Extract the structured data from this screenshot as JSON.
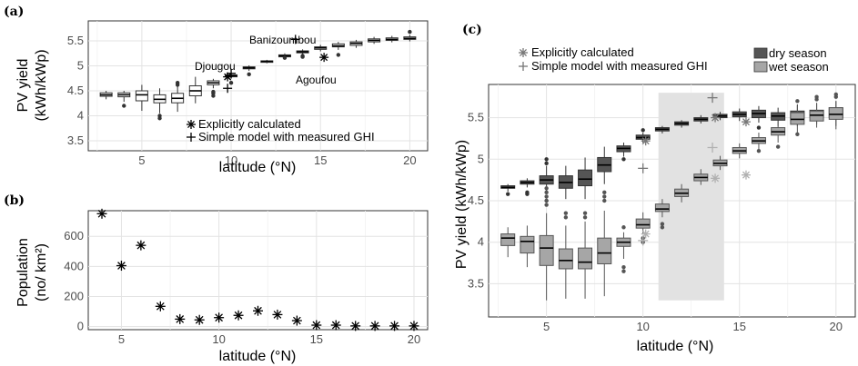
{
  "chart_data": [
    {
      "panel": "(a)",
      "type": "box",
      "xlabel": "latitude (°N)",
      "ylabel_lines": [
        "PV yield",
        "(kWh/kWp)"
      ],
      "xlim": [
        2,
        21
      ],
      "ylim": [
        3.3,
        5.9
      ],
      "xticks": [
        5,
        10,
        15,
        20
      ],
      "yticks": [
        3.5,
        4,
        4.5,
        5,
        5.5
      ],
      "ytick_labels": [
        "3.5",
        "4",
        "4.5",
        "5",
        "5.5"
      ],
      "boxes": [
        {
          "x": 3,
          "q1": 4.39,
          "med": 4.42,
          "q3": 4.46,
          "lo": 4.33,
          "hi": 4.5,
          "out": []
        },
        {
          "x": 4,
          "q1": 4.38,
          "med": 4.42,
          "q3": 4.46,
          "lo": 4.28,
          "hi": 4.5,
          "out": [
            4.2
          ]
        },
        {
          "x": 5,
          "q1": 4.3,
          "med": 4.42,
          "q3": 4.5,
          "lo": 4.1,
          "hi": 4.62,
          "out": []
        },
        {
          "x": 6,
          "q1": 4.26,
          "med": 4.33,
          "q3": 4.42,
          "lo": 4.05,
          "hi": 4.55,
          "out": [
            3.95,
            4.0
          ]
        },
        {
          "x": 7,
          "q1": 4.26,
          "med": 4.35,
          "q3": 4.45,
          "lo": 4.08,
          "hi": 4.6,
          "out": [
            4.62,
            4.66
          ]
        },
        {
          "x": 8,
          "q1": 4.4,
          "med": 4.5,
          "q3": 4.6,
          "lo": 4.25,
          "hi": 4.78,
          "out": []
        },
        {
          "x": 9,
          "q1": 4.62,
          "med": 4.66,
          "q3": 4.7,
          "lo": 4.55,
          "hi": 4.74,
          "out": [
            4.4,
            4.45,
            4.48
          ]
        },
        {
          "x": 10,
          "q1": 4.78,
          "med": 4.8,
          "q3": 4.82,
          "lo": 4.74,
          "hi": 4.86,
          "out": [
            4.66
          ]
        },
        {
          "x": 11,
          "q1": 4.94,
          "med": 4.96,
          "q3": 4.98,
          "lo": 4.9,
          "hi": 5.01,
          "out": [
            4.83
          ]
        },
        {
          "x": 12,
          "q1": 5.07,
          "med": 5.09,
          "q3": 5.1,
          "lo": 5.05,
          "hi": 5.12,
          "out": []
        },
        {
          "x": 13,
          "q1": 5.18,
          "med": 5.2,
          "q3": 5.22,
          "lo": 5.15,
          "hi": 5.25,
          "out": [
            5.16
          ]
        },
        {
          "x": 14,
          "q1": 5.26,
          "med": 5.28,
          "q3": 5.3,
          "lo": 5.22,
          "hi": 5.33,
          "out": [
            5.18,
            5.2
          ]
        },
        {
          "x": 15,
          "q1": 5.33,
          "med": 5.36,
          "q3": 5.38,
          "lo": 5.29,
          "hi": 5.42,
          "out": []
        },
        {
          "x": 16,
          "q1": 5.38,
          "med": 5.4,
          "q3": 5.44,
          "lo": 5.32,
          "hi": 5.48,
          "out": [
            5.22
          ]
        },
        {
          "x": 17,
          "q1": 5.41,
          "med": 5.45,
          "q3": 5.48,
          "lo": 5.36,
          "hi": 5.52,
          "out": []
        },
        {
          "x": 18,
          "q1": 5.48,
          "med": 5.51,
          "q3": 5.54,
          "lo": 5.44,
          "hi": 5.58,
          "out": []
        },
        {
          "x": 19,
          "q1": 5.51,
          "med": 5.53,
          "q3": 5.56,
          "lo": 5.47,
          "hi": 5.6,
          "out": []
        },
        {
          "x": 20,
          "q1": 5.53,
          "med": 5.55,
          "q3": 5.58,
          "lo": 5.49,
          "hi": 5.62,
          "out": [
            5.68
          ]
        }
      ],
      "explicit_points": [
        {
          "x": 9.8,
          "y": 4.78
        },
        {
          "x": 15.2,
          "y": 5.17
        }
      ],
      "simple_points": [
        {
          "x": 9.8,
          "y": 4.55
        },
        {
          "x": 10.0,
          "y": 4.85
        },
        {
          "x": 13.6,
          "y": 5.53
        }
      ],
      "annotations": [
        {
          "text": "Banizoumbou",
          "x": 13.6,
          "y": 5.78
        },
        {
          "text": "Djougou",
          "x": 9.7,
          "y": 5.12
        },
        {
          "text": "Agoufou",
          "x": 15.4,
          "y": 4.99
        }
      ],
      "legend": [
        "Explicitly calculated",
        "Simple model with measured GHI"
      ],
      "legend_position": "bottom-right"
    },
    {
      "panel": "(b)",
      "type": "scatter",
      "xlabel": "latitude (°N)",
      "ylabel_lines": [
        "Population",
        "(no/ km²)"
      ],
      "xlim": [
        3.3,
        20.7
      ],
      "ylim": [
        -20,
        770
      ],
      "xticks": [
        5,
        10,
        15,
        20
      ],
      "yticks": [
        0,
        200,
        400,
        600
      ],
      "ytick_labels": [
        "0",
        "200",
        "400",
        "600"
      ],
      "x": [
        4,
        5,
        6,
        7,
        8,
        9,
        10,
        11,
        12,
        13,
        14,
        15,
        16,
        17,
        18,
        19,
        20
      ],
      "y": [
        750,
        405,
        540,
        135,
        50,
        45,
        60,
        75,
        105,
        80,
        40,
        10,
        10,
        5,
        5,
        5,
        5
      ]
    },
    {
      "panel": "(c)",
      "type": "box",
      "xlabel": "latitude (°N)",
      "ylabel": "PV yield (kWh/kWp)",
      "xlim": [
        2,
        21
      ],
      "ylim": [
        3.1,
        5.9
      ],
      "xticks": [
        5,
        10,
        15,
        20
      ],
      "yticks": [
        3.5,
        4,
        4.5,
        5,
        5.5
      ],
      "ytick_labels": [
        "3.5",
        "4",
        "4.5",
        "5",
        "5.5"
      ],
      "shaded_range": {
        "x0": 10.8,
        "x1": 14.2,
        "y0": 3.3,
        "y1": 5.8
      },
      "legend_markers": [
        "Explicitly calculated",
        "Simple model with measured GHI"
      ],
      "legend_seasons": [
        "dry season",
        "wet season"
      ],
      "season_colors": {
        "dry": "#555555",
        "wet": "#a6a6a6"
      },
      "dry": [
        {
          "x": 3,
          "q1": 4.65,
          "med": 4.66,
          "q3": 4.68,
          "lo": 4.61,
          "hi": 4.7,
          "out": [
            4.58
          ]
        },
        {
          "x": 4,
          "q1": 4.7,
          "med": 4.72,
          "q3": 4.74,
          "lo": 4.66,
          "hi": 4.77,
          "out": [
            4.58,
            4.6
          ]
        },
        {
          "x": 5,
          "q1": 4.7,
          "med": 4.75,
          "q3": 4.8,
          "lo": 4.58,
          "hi": 4.92,
          "out": [
            4.95,
            5.0,
            4.5
          ]
        },
        {
          "x": 6,
          "q1": 4.65,
          "med": 4.72,
          "q3": 4.8,
          "lo": 4.52,
          "hi": 4.92,
          "out": []
        },
        {
          "x": 7,
          "q1": 4.68,
          "med": 4.76,
          "q3": 4.87,
          "lo": 4.52,
          "hi": 5.02,
          "out": []
        },
        {
          "x": 8,
          "q1": 4.85,
          "med": 4.93,
          "q3": 5.02,
          "lo": 4.7,
          "hi": 5.15,
          "out": []
        },
        {
          "x": 9,
          "q1": 5.09,
          "med": 5.13,
          "q3": 5.16,
          "lo": 5.03,
          "hi": 5.2,
          "out": [
            5.0
          ]
        },
        {
          "x": 10,
          "q1": 5.24,
          "med": 5.26,
          "q3": 5.29,
          "lo": 5.2,
          "hi": 5.32,
          "out": [
            5.35
          ]
        },
        {
          "x": 11,
          "q1": 5.34,
          "med": 5.36,
          "q3": 5.38,
          "lo": 5.31,
          "hi": 5.4,
          "out": []
        },
        {
          "x": 12,
          "q1": 5.41,
          "med": 5.43,
          "q3": 5.45,
          "lo": 5.38,
          "hi": 5.47,
          "out": []
        },
        {
          "x": 13,
          "q1": 5.46,
          "med": 5.48,
          "q3": 5.5,
          "lo": 5.43,
          "hi": 5.53,
          "out": []
        },
        {
          "x": 14,
          "q1": 5.5,
          "med": 5.52,
          "q3": 5.54,
          "lo": 5.47,
          "hi": 5.57,
          "out": []
        },
        {
          "x": 15,
          "q1": 5.51,
          "med": 5.54,
          "q3": 5.57,
          "lo": 5.46,
          "hi": 5.61,
          "out": []
        },
        {
          "x": 16,
          "q1": 5.5,
          "med": 5.55,
          "q3": 5.59,
          "lo": 5.44,
          "hi": 5.64,
          "out": [
            5.38
          ]
        },
        {
          "x": 17,
          "q1": 5.47,
          "med": 5.52,
          "q3": 5.56,
          "lo": 5.4,
          "hi": 5.62,
          "out": []
        },
        {
          "x": 18,
          "q1": 5.49,
          "med": 5.53,
          "q3": 5.58,
          "lo": 5.4,
          "hi": 5.66,
          "out": []
        },
        {
          "x": 19,
          "q1": 5.5,
          "med": 5.55,
          "q3": 5.59,
          "lo": 5.42,
          "hi": 5.67,
          "out": []
        },
        {
          "x": 20,
          "q1": 5.5,
          "med": 5.56,
          "q3": 5.62,
          "lo": 5.4,
          "hi": 5.7,
          "out": []
        }
      ],
      "wet": [
        {
          "x": 3,
          "q1": 3.96,
          "med": 4.05,
          "q3": 4.1,
          "lo": 3.82,
          "hi": 4.18,
          "out": []
        },
        {
          "x": 4,
          "q1": 3.87,
          "med": 4.01,
          "q3": 4.07,
          "lo": 3.7,
          "hi": 4.2,
          "out": []
        },
        {
          "x": 5,
          "q1": 3.72,
          "med": 3.93,
          "q3": 4.08,
          "lo": 3.3,
          "hi": 4.35,
          "out": [
            4.45,
            4.5,
            4.55,
            4.6,
            4.65
          ]
        },
        {
          "x": 6,
          "q1": 3.68,
          "med": 3.78,
          "q3": 3.92,
          "lo": 3.32,
          "hi": 4.2,
          "out": [
            4.3,
            4.35
          ]
        },
        {
          "x": 7,
          "q1": 3.68,
          "med": 3.76,
          "q3": 3.93,
          "lo": 3.32,
          "hi": 4.25,
          "out": [
            4.3,
            4.35
          ]
        },
        {
          "x": 8,
          "q1": 3.74,
          "med": 3.87,
          "q3": 4.05,
          "lo": 3.35,
          "hi": 4.38,
          "out": [
            4.5,
            4.55,
            4.6
          ]
        },
        {
          "x": 9,
          "q1": 3.95,
          "med": 4.0,
          "q3": 4.05,
          "lo": 3.8,
          "hi": 4.12,
          "out": [
            3.65,
            3.7,
            4.18
          ]
        },
        {
          "x": 10,
          "q1": 4.17,
          "med": 4.21,
          "q3": 4.28,
          "lo": 4.1,
          "hi": 4.36,
          "out": [
            4.0,
            4.05
          ]
        },
        {
          "x": 11,
          "q1": 4.37,
          "med": 4.4,
          "q3": 4.46,
          "lo": 4.3,
          "hi": 4.52,
          "out": [
            4.18,
            4.22
          ]
        },
        {
          "x": 12,
          "q1": 4.55,
          "med": 4.59,
          "q3": 4.64,
          "lo": 4.48,
          "hi": 4.7,
          "out": []
        },
        {
          "x": 13,
          "q1": 4.74,
          "med": 4.78,
          "q3": 4.82,
          "lo": 4.69,
          "hi": 4.88,
          "out": []
        },
        {
          "x": 14,
          "q1": 4.92,
          "med": 4.95,
          "q3": 4.99,
          "lo": 4.87,
          "hi": 5.04,
          "out": []
        },
        {
          "x": 15,
          "q1": 5.07,
          "med": 5.1,
          "q3": 5.14,
          "lo": 5.01,
          "hi": 5.19,
          "out": []
        },
        {
          "x": 16,
          "q1": 5.19,
          "med": 5.22,
          "q3": 5.26,
          "lo": 5.12,
          "hi": 5.32,
          "out": [
            5.1
          ]
        },
        {
          "x": 17,
          "q1": 5.29,
          "med": 5.33,
          "q3": 5.38,
          "lo": 5.2,
          "hi": 5.45,
          "out": [
            5.15
          ]
        },
        {
          "x": 18,
          "q1": 5.42,
          "med": 5.48,
          "q3": 5.56,
          "lo": 5.32,
          "hi": 5.65,
          "out": [
            5.3,
            5.7
          ]
        },
        {
          "x": 19,
          "q1": 5.46,
          "med": 5.53,
          "q3": 5.58,
          "lo": 5.38,
          "hi": 5.68,
          "out": [
            5.72,
            5.75
          ]
        },
        {
          "x": 20,
          "q1": 5.48,
          "med": 5.54,
          "q3": 5.62,
          "lo": 5.36,
          "hi": 5.7,
          "out": [
            5.75,
            5.78
          ]
        }
      ],
      "explicit_points": [
        {
          "x": 10.0,
          "y": 5.22,
          "season": "dry"
        },
        {
          "x": 13.6,
          "y": 5.5,
          "season": "dry"
        },
        {
          "x": 15.2,
          "y": 5.45,
          "season": "dry"
        },
        {
          "x": 10.0,
          "y": 4.1,
          "season": "wet"
        },
        {
          "x": 13.6,
          "y": 4.77,
          "season": "wet"
        },
        {
          "x": 15.2,
          "y": 4.81,
          "season": "wet"
        }
      ],
      "simple_points": [
        {
          "x": 10.0,
          "y": 4.89,
          "season": "dry"
        },
        {
          "x": 13.6,
          "y": 5.74,
          "season": "dry"
        },
        {
          "x": 10.0,
          "y": 4.02,
          "season": "wet"
        },
        {
          "x": 13.6,
          "y": 5.14,
          "season": "wet"
        }
      ]
    }
  ]
}
